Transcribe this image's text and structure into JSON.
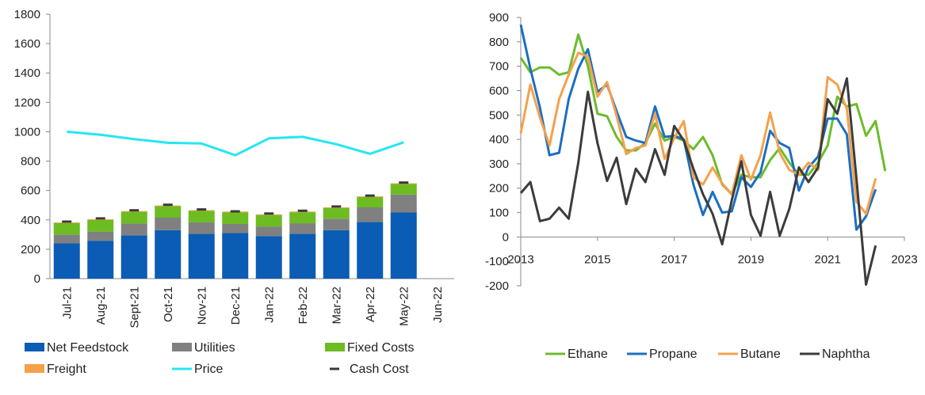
{
  "chart_data": [
    {
      "type": "bar",
      "stacked": true,
      "categories": [
        "Jul-21",
        "Aug-21",
        "Sept-21",
        "Oct-21",
        "Nov-21",
        "Dec-21",
        "Jan-22",
        "Feb-22",
        "Mar-22",
        "Apr-22",
        "May-22",
        "Jun-22"
      ],
      "ylim": [
        0,
        1800
      ],
      "yticks": [
        0,
        200,
        400,
        600,
        800,
        1000,
        1200,
        1400,
        1600,
        1800
      ],
      "series": [
        {
          "name": "Net Feedstock",
          "kind": "bar",
          "color": "#0a5cb4",
          "values": [
            240,
            258,
            295,
            330,
            305,
            310,
            290,
            305,
            330,
            385,
            450,
            null
          ]
        },
        {
          "name": "Utilities",
          "kind": "bar",
          "color": "#808080",
          "values": [
            60,
            62,
            80,
            85,
            78,
            62,
            65,
            72,
            78,
            100,
            122,
            null
          ]
        },
        {
          "name": "Fixed Costs",
          "kind": "bar",
          "color": "#6cbc22",
          "values": [
            78,
            80,
            80,
            78,
            78,
            80,
            78,
            75,
            73,
            70,
            72,
            null
          ]
        },
        {
          "name": "Freight",
          "kind": "bar",
          "color": "#f5a04a",
          "values": [
            5,
            5,
            5,
            5,
            5,
            5,
            5,
            5,
            5,
            5,
            5,
            null
          ]
        },
        {
          "name": "Price",
          "kind": "line",
          "color": "#25e6f2",
          "values": [
            1000,
            980,
            950,
            925,
            920,
            840,
            955,
            965,
            915,
            850,
            928,
            null
          ]
        },
        {
          "name": "Cash Cost",
          "kind": "marker",
          "color": "#3a3a3a",
          "values": [
            388,
            410,
            465,
            503,
            471,
            458,
            443,
            462,
            491,
            565,
            654,
            null
          ]
        }
      ]
    },
    {
      "type": "line",
      "xlim": [
        2013,
        2023
      ],
      "xticks": [
        2013,
        2015,
        2017,
        2019,
        2021,
        2023
      ],
      "ylim": [
        -200,
        900
      ],
      "yticks": [
        -200,
        -100,
        0,
        100,
        200,
        300,
        400,
        500,
        600,
        700,
        800,
        900
      ],
      "series": [
        {
          "name": "Ethane",
          "color": "#6cbc2c",
          "points": [
            [
              2013,
              735
            ],
            [
              2013.25,
              675
            ],
            [
              2013.5,
              695
            ],
            [
              2013.75,
              695
            ],
            [
              2014,
              665
            ],
            [
              2014.25,
              675
            ],
            [
              2014.5,
              830
            ],
            [
              2014.75,
              700
            ],
            [
              2015,
              505
            ],
            [
              2015.25,
              495
            ],
            [
              2015.5,
              410
            ],
            [
              2015.75,
              355
            ],
            [
              2016,
              355
            ],
            [
              2016.25,
              385
            ],
            [
              2016.5,
              465
            ],
            [
              2016.75,
              395
            ],
            [
              2017,
              410
            ],
            [
              2017.25,
              395
            ],
            [
              2017.5,
              360
            ],
            [
              2017.75,
              410
            ],
            [
              2018,
              335
            ],
            [
              2018.25,
              215
            ],
            [
              2018.5,
              175
            ],
            [
              2018.75,
              255
            ],
            [
              2019,
              245
            ],
            [
              2019.25,
              245
            ],
            [
              2019.5,
              315
            ],
            [
              2019.75,
              365
            ],
            [
              2020,
              305
            ],
            [
              2020.25,
              255
            ],
            [
              2020.5,
              255
            ],
            [
              2020.75,
              305
            ],
            [
              2021,
              375
            ],
            [
              2021.25,
              575
            ],
            [
              2021.5,
              535
            ],
            [
              2021.75,
              545
            ],
            [
              2022,
              415
            ],
            [
              2022.25,
              475
            ],
            [
              2022.5,
              270
            ]
          ]
        },
        {
          "name": "Propane",
          "color": "#1b6fc0",
          "points": [
            [
              2013,
              870
            ],
            [
              2013.25,
              690
            ],
            [
              2013.5,
              530
            ],
            [
              2013.75,
              335
            ],
            [
              2014,
              345
            ],
            [
              2014.25,
              565
            ],
            [
              2014.5,
              690
            ],
            [
              2014.75,
              770
            ],
            [
              2015,
              595
            ],
            [
              2015.25,
              625
            ],
            [
              2015.5,
              515
            ],
            [
              2015.75,
              410
            ],
            [
              2016,
              395
            ],
            [
              2016.25,
              385
            ],
            [
              2016.5,
              535
            ],
            [
              2016.75,
              410
            ],
            [
              2017,
              415
            ],
            [
              2017.25,
              400
            ],
            [
              2017.5,
              215
            ],
            [
              2017.75,
              90
            ],
            [
              2018,
              185
            ],
            [
              2018.25,
              100
            ],
            [
              2018.5,
              105
            ],
            [
              2018.75,
              245
            ],
            [
              2019,
              205
            ],
            [
              2019.25,
              265
            ],
            [
              2019.5,
              435
            ],
            [
              2019.75,
              385
            ],
            [
              2020,
              365
            ],
            [
              2020.25,
              190
            ],
            [
              2020.5,
              285
            ],
            [
              2020.75,
              330
            ],
            [
              2021,
              485
            ],
            [
              2021.25,
              485
            ],
            [
              2021.5,
              420
            ],
            [
              2021.75,
              30
            ],
            [
              2022,
              85
            ],
            [
              2022.25,
              195
            ]
          ]
        },
        {
          "name": "Butane",
          "color": "#f4a14e",
          "points": [
            [
              2013,
              425
            ],
            [
              2013.25,
              625
            ],
            [
              2013.5,
              490
            ],
            [
              2013.75,
              375
            ],
            [
              2014,
              565
            ],
            [
              2014.25,
              665
            ],
            [
              2014.5,
              755
            ],
            [
              2014.75,
              740
            ],
            [
              2015,
              575
            ],
            [
              2015.25,
              635
            ],
            [
              2015.5,
              495
            ],
            [
              2015.75,
              340
            ],
            [
              2016,
              365
            ],
            [
              2016.25,
              375
            ],
            [
              2016.5,
              505
            ],
            [
              2016.75,
              320
            ],
            [
              2017,
              405
            ],
            [
              2017.25,
              475
            ],
            [
              2017.5,
              245
            ],
            [
              2017.75,
              215
            ],
            [
              2018,
              285
            ],
            [
              2018.25,
              220
            ],
            [
              2018.5,
              175
            ],
            [
              2018.75,
              335
            ],
            [
              2019,
              235
            ],
            [
              2019.25,
              335
            ],
            [
              2019.5,
              510
            ],
            [
              2019.75,
              345
            ],
            [
              2020,
              275
            ],
            [
              2020.25,
              255
            ],
            [
              2020.5,
              305
            ],
            [
              2020.75,
              275
            ],
            [
              2021,
              655
            ],
            [
              2021.25,
              625
            ],
            [
              2021.5,
              525
            ],
            [
              2021.75,
              145
            ],
            [
              2022,
              95
            ],
            [
              2022.25,
              240
            ]
          ]
        },
        {
          "name": "Naphtha",
          "color": "#3c3c3c",
          "points": [
            [
              2013,
              180
            ],
            [
              2013.25,
              225
            ],
            [
              2013.5,
              65
            ],
            [
              2013.75,
              75
            ],
            [
              2014,
              120
            ],
            [
              2014.25,
              75
            ],
            [
              2014.5,
              305
            ],
            [
              2014.75,
              595
            ],
            [
              2015,
              385
            ],
            [
              2015.25,
              230
            ],
            [
              2015.5,
              325
            ],
            [
              2015.75,
              135
            ],
            [
              2016,
              280
            ],
            [
              2016.25,
              225
            ],
            [
              2016.5,
              360
            ],
            [
              2016.75,
              255
            ],
            [
              2017,
              455
            ],
            [
              2017.25,
              395
            ],
            [
              2017.5,
              280
            ],
            [
              2017.75,
              175
            ],
            [
              2018,
              95
            ],
            [
              2018.25,
              -30
            ],
            [
              2018.5,
              150
            ],
            [
              2018.75,
              310
            ],
            [
              2019,
              90
            ],
            [
              2019.25,
              5
            ],
            [
              2019.5,
              185
            ],
            [
              2019.75,
              5
            ],
            [
              2020,
              115
            ],
            [
              2020.25,
              285
            ],
            [
              2020.5,
              225
            ],
            [
              2020.75,
              285
            ],
            [
              2021,
              565
            ],
            [
              2021.25,
              505
            ],
            [
              2021.5,
              650
            ],
            [
              2021.75,
              240
            ],
            [
              2022,
              -195
            ],
            [
              2022.25,
              -35
            ]
          ]
        }
      ]
    }
  ]
}
